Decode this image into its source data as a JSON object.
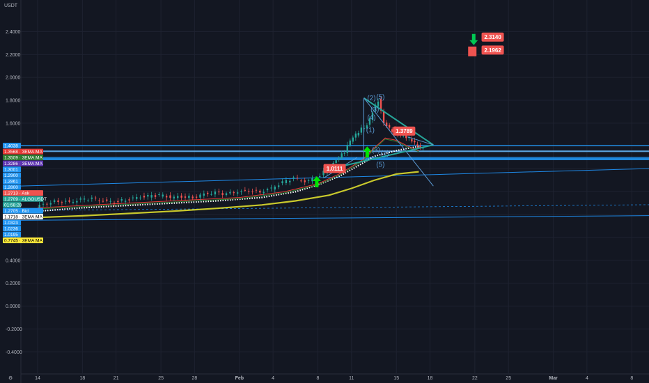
{
  "currency_label": "USDT",
  "colors": {
    "background": "#131722",
    "bull": "#26a69a",
    "bear": "#ef5350",
    "ema_yellow": "#c9c92c",
    "ema_red": "#e53935",
    "ema_green": "#2e7d32",
    "level_line": "#2196f3",
    "trend_line": "#26a69a",
    "arrow_up": "#00e400",
    "arrow_down": "#00c853"
  },
  "chart_data": {
    "type": "candlestick",
    "symbol": "ALGOUSDT",
    "y_ticks": [
      "2.4000",
      "2.2000",
      "2.0000",
      "1.8000",
      "1.6000",
      "1.4000",
      "1.2000",
      "1.0000",
      "0.8000",
      "0.6000",
      "0.4000",
      "0.2000",
      "0.0000",
      "-0.2000",
      "-0.4000"
    ],
    "y_tick_values": [
      2.4,
      2.2,
      2.0,
      1.8,
      1.6,
      1.4,
      1.2,
      1.0,
      0.8,
      0.6,
      0.4,
      0.2,
      0.0,
      -0.2,
      -0.4
    ],
    "ylim": [
      -0.62,
      2.6
    ],
    "x_ticks": [
      {
        "label": "14",
        "day": 0,
        "bold": false
      },
      {
        "label": "18",
        "day": 4,
        "bold": false
      },
      {
        "label": "21",
        "day": 7,
        "bold": false
      },
      {
        "label": "25",
        "day": 11,
        "bold": false
      },
      {
        "label": "28",
        "day": 14,
        "bold": false
      },
      {
        "label": "Feb",
        "day": 18,
        "bold": true
      },
      {
        "label": "4",
        "day": 21,
        "bold": false
      },
      {
        "label": "8",
        "day": 25,
        "bold": false
      },
      {
        "label": "11",
        "day": 28,
        "bold": false
      },
      {
        "label": "15",
        "day": 32,
        "bold": false
      },
      {
        "label": "18",
        "day": 35,
        "bold": false
      },
      {
        "label": "22",
        "day": 39,
        "bold": false
      },
      {
        "label": "25",
        "day": 42,
        "bold": false
      },
      {
        "label": "Mar",
        "day": 46,
        "bold": true
      },
      {
        "label": "4",
        "day": 49,
        "bold": false
      },
      {
        "label": "8",
        "day": 53,
        "bold": false
      }
    ],
    "price_labels": [
      {
        "value": 1.4038,
        "text": "1.4038",
        "color": "#2196f3"
      },
      {
        "value": 1.3568,
        "text": "1.3568 · 3EMA:MA",
        "color": "#e53935"
      },
      {
        "value": 1.3509,
        "text": "1.3509 · 3EMA:MA",
        "color": "#2e7d32"
      },
      {
        "value": 1.3286,
        "text": "1.3286 · 3EMA:MA",
        "color": "#5e35b1"
      },
      {
        "value": 1.3001,
        "text": "1.3001",
        "color": "#2196f3"
      },
      {
        "value": 1.29,
        "text": "1.2900",
        "color": "#2196f3"
      },
      {
        "value": 1.2861,
        "text": "1.2861",
        "color": "#2196f3"
      },
      {
        "value": 1.28,
        "text": "1.2800",
        "color": "#2196f3"
      },
      {
        "value": 1.2713,
        "text": "1.2713 · Ask",
        "color": "#ef5350"
      },
      {
        "value": 1.2709,
        "text": "1.2709 · ALGOUSDT",
        "color": "#26a69a"
      },
      {
        "value": 1.2706,
        "text": "01:58:28",
        "color": "#26a69a"
      },
      {
        "value": 1.2705,
        "text": "1.2705 · Bid",
        "color": "#2196f3"
      },
      {
        "value": 1.1718,
        "text": "1.1718 · 3EMA:MA",
        "color": "#ffffff"
      },
      {
        "value": 1.0323,
        "text": "1.0323",
        "color": "#2196f3"
      },
      {
        "value": 1.0236,
        "text": "1.0236",
        "color": "#2196f3"
      },
      {
        "value": 1.0195,
        "text": "1.0195",
        "color": "#2196f3"
      },
      {
        "value": 0.7745,
        "text": "0.7745 · 3EMA:MA",
        "color": "#ffeb3b"
      }
    ],
    "callouts": [
      {
        "text": "1.0111",
        "color": "#ef5350"
      },
      {
        "text": "1.3789",
        "color": "#ef5350"
      },
      {
        "text": "2.3140",
        "color": "#ef5350"
      },
      {
        "text": "2.1962",
        "color": "#ef5350"
      }
    ],
    "wave_labels": [
      "(2)",
      "(5)",
      "(3)",
      "(4)",
      "(1)",
      "(3)",
      "(2)",
      "(5)"
    ]
  }
}
